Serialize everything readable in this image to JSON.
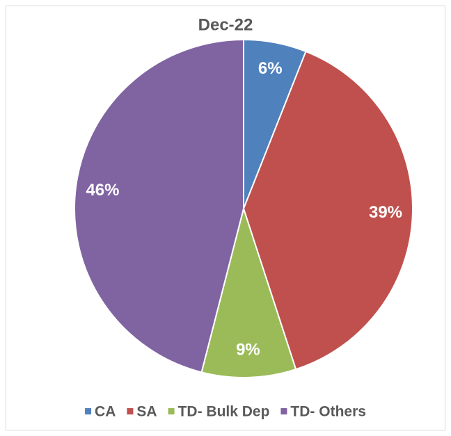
{
  "chart_data": {
    "type": "pie",
    "title": "Dec-22",
    "categories": [
      "CA",
      "SA",
      "TD- Bulk Dep",
      "TD- Others"
    ],
    "values": [
      6,
      39,
      9,
      46
    ],
    "value_labels": [
      "6%",
      "39%",
      "9%",
      "46%"
    ],
    "colors": [
      "#4f81bd",
      "#c0504d",
      "#9bbb59",
      "#8064a2"
    ],
    "legend": "bottom"
  }
}
